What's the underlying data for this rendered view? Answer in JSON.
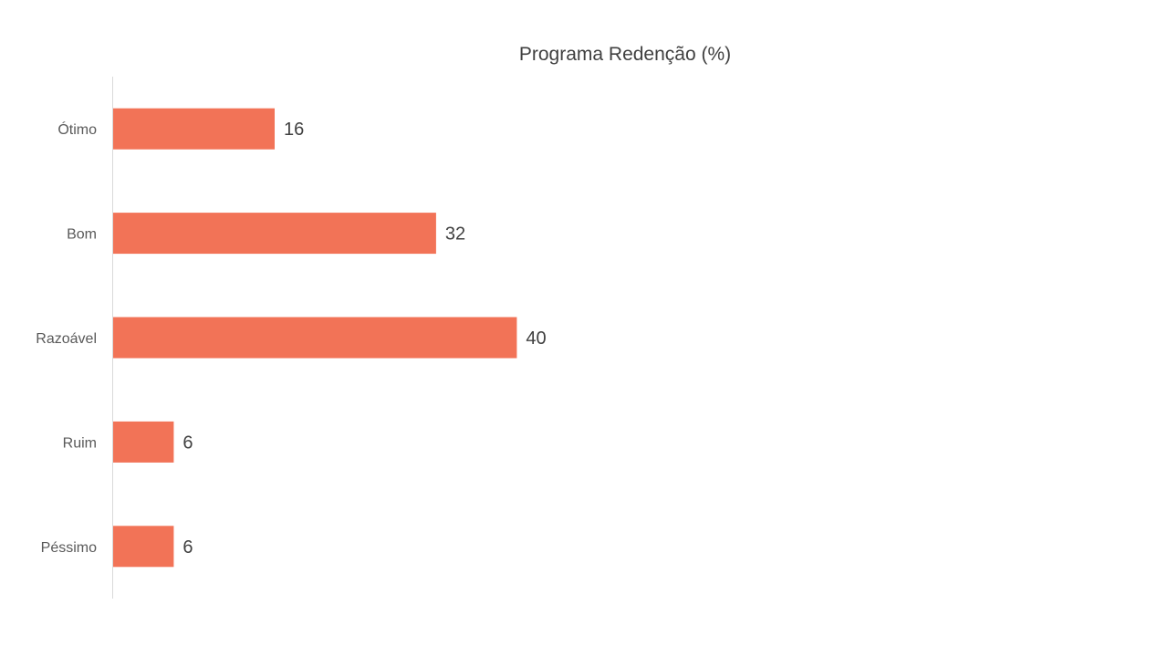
{
  "chart_data": {
    "type": "bar",
    "orientation": "horizontal",
    "title": "Programa Redenção (%)",
    "categories": [
      "Ótimo",
      "Bom",
      "Razoável",
      "Ruim",
      "Péssimo"
    ],
    "values": [
      16,
      32,
      40,
      6,
      6
    ],
    "series": [
      {
        "values": [
          16,
          32,
          40,
          6,
          6
        ]
      }
    ],
    "xlabel": "",
    "ylabel": "",
    "xlim": [
      0,
      100
    ],
    "data_labels": true,
    "gridlines": false,
    "legend": "none",
    "colors": {
      "bar": "#F27357",
      "axis": "#D9D9D9"
    }
  }
}
